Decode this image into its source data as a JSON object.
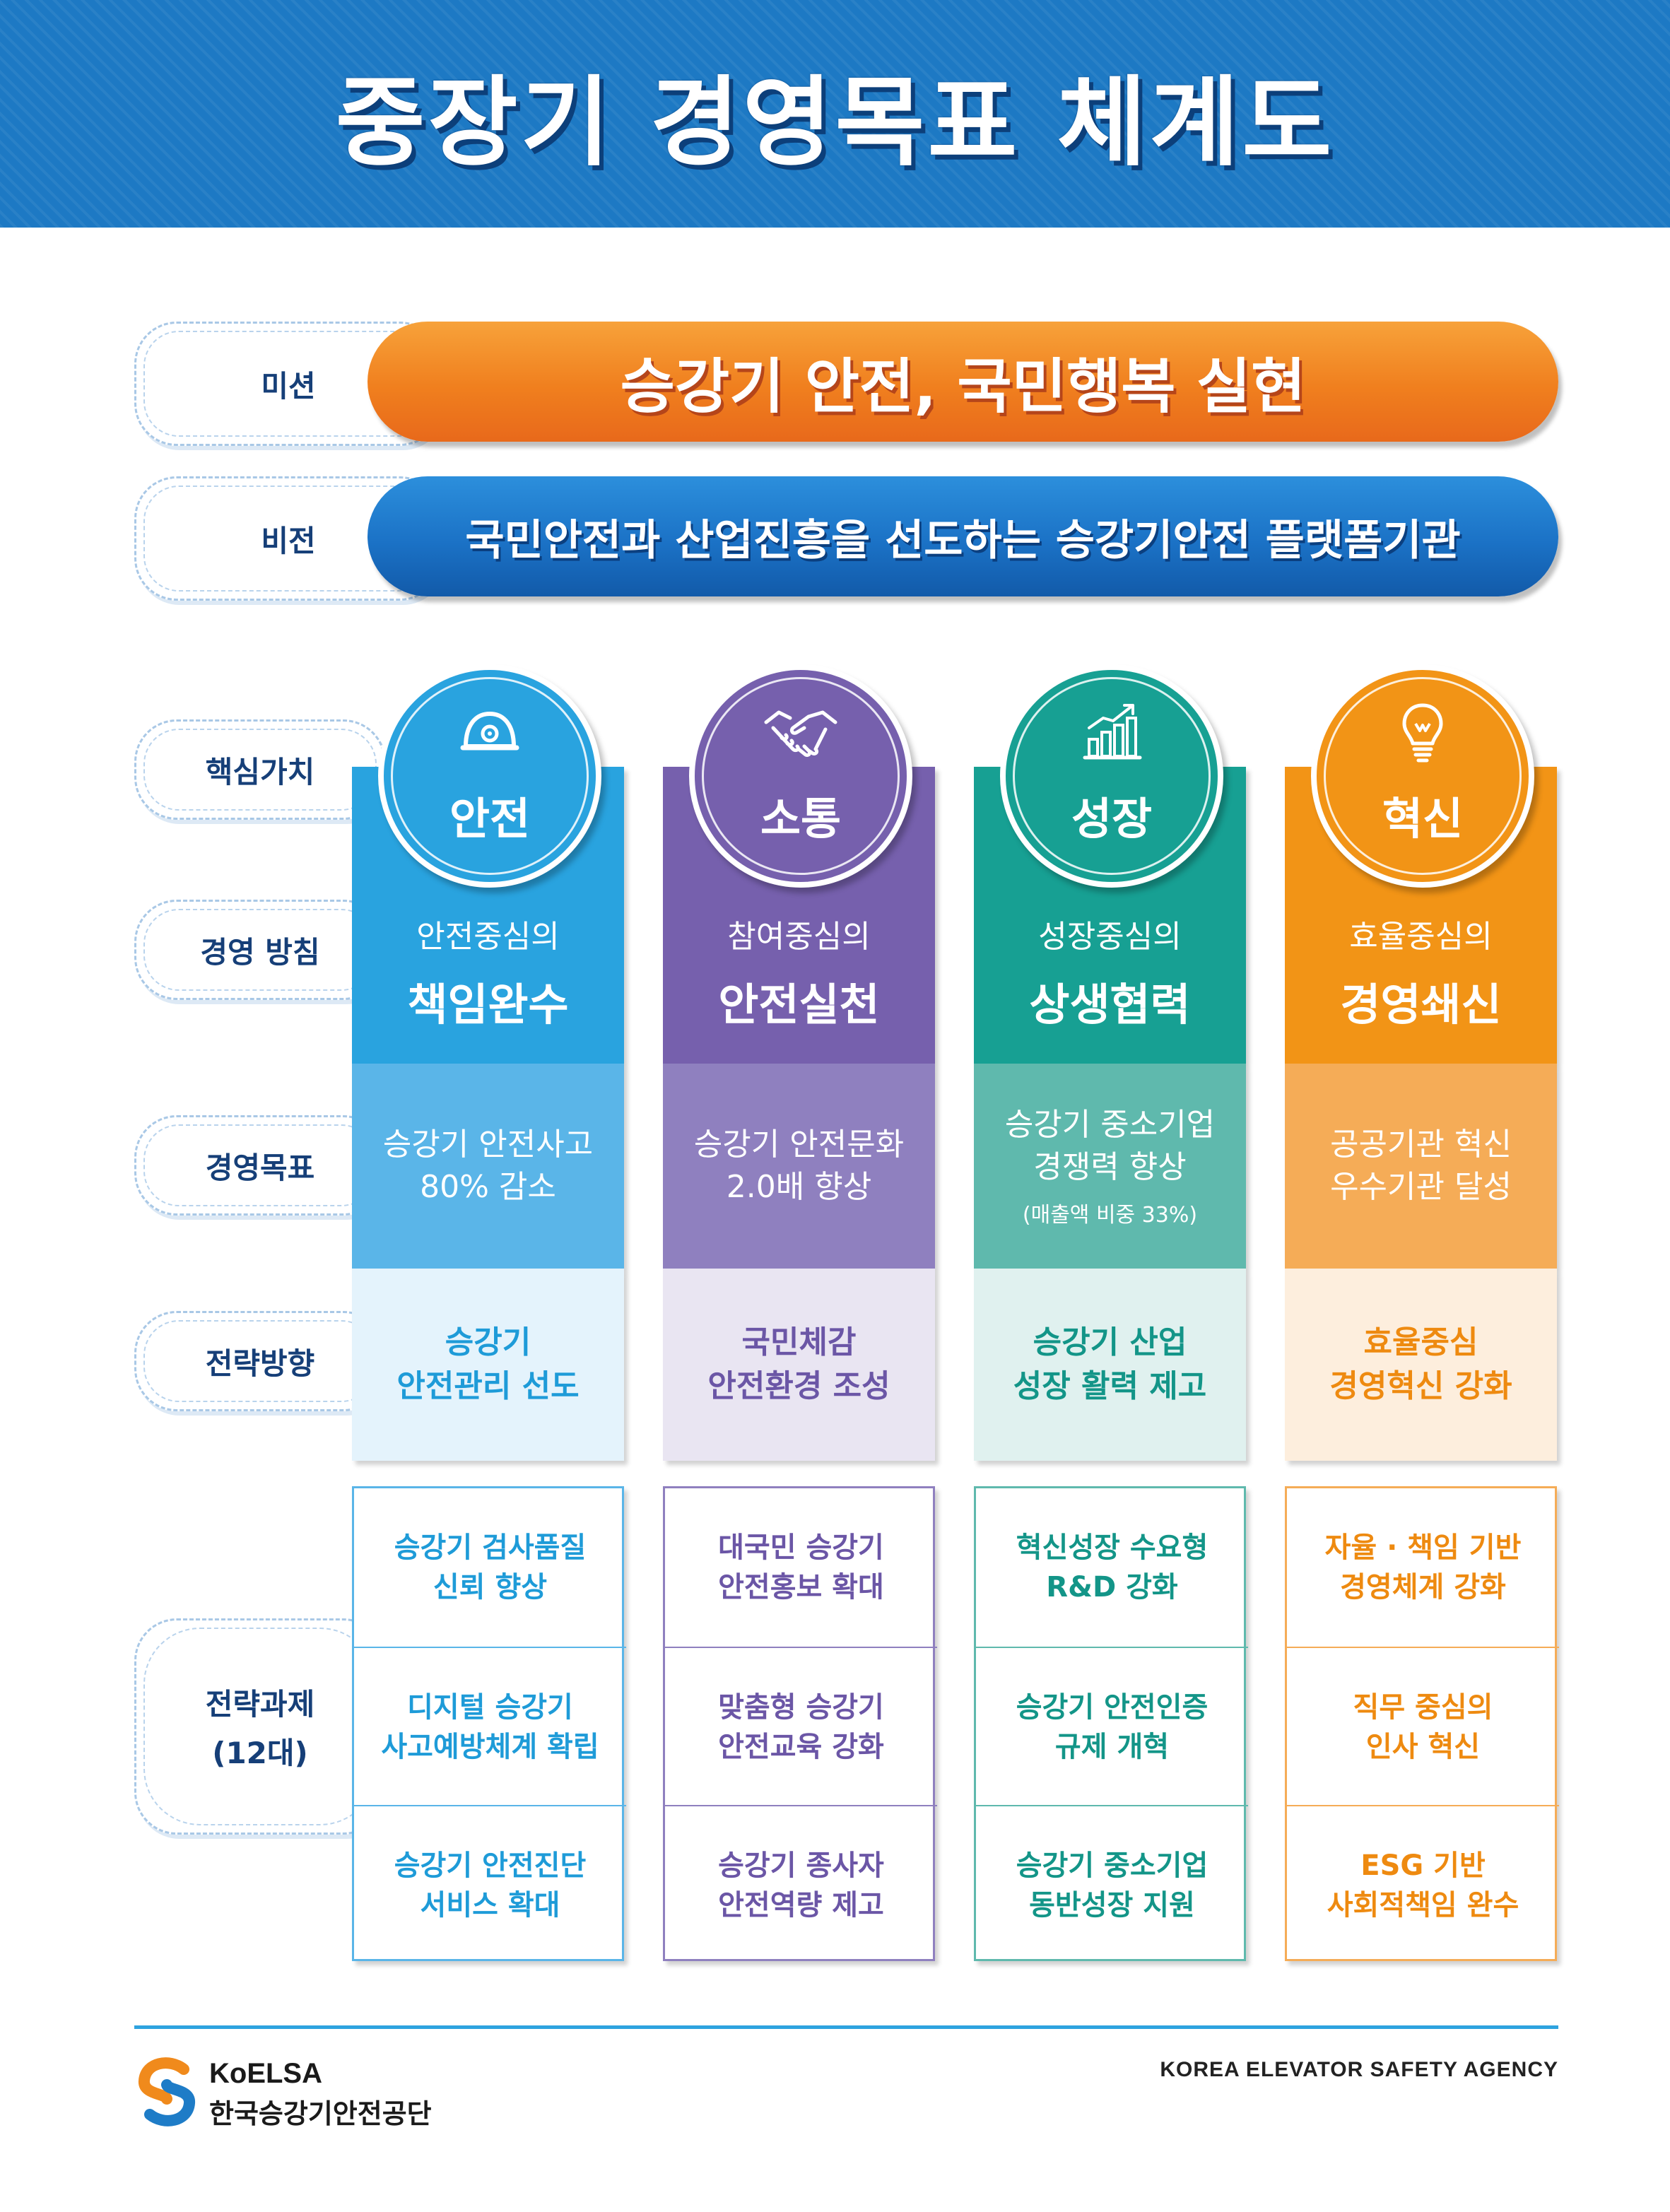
{
  "title": "중장기 경영목표 체계도",
  "mission": {
    "label": "미션",
    "text": "승강기 안전, 국민행복 실현"
  },
  "vision": {
    "label": "비전",
    "text": "국민안전과 산업진흥을 선도하는 승강기안전 플랫폼기관"
  },
  "row_labels": {
    "core_values": "핵심가치",
    "policy": "경영 방침",
    "goals": "경영목표",
    "directions": "전략방향",
    "tasks_line1": "전략과제",
    "tasks_line2": "(12대)"
  },
  "columns": [
    {
      "value": "안전",
      "icon": "helmet-icon",
      "policy_sub": "안전중심의",
      "policy_main": "책임완수",
      "goal": [
        "승강기 안전사고",
        "80% 감소"
      ],
      "goal_note": "",
      "direction": [
        "승강기",
        "안전관리 선도"
      ],
      "tasks": [
        [
          "승강기 검사품질",
          "신뢰 향상"
        ],
        [
          "디지털 승강기",
          "사고예방체계 확립"
        ],
        [
          "승강기 안전진단",
          "서비스 확대"
        ]
      ],
      "colors": {
        "main": "#29a3df",
        "goal": "#5ab5e8",
        "dir_bg": "#e4f3fc",
        "text": "#1e9bd8"
      }
    },
    {
      "value": "소통",
      "icon": "handshake-icon",
      "policy_sub": "참여중심의",
      "policy_main": "안전실천",
      "goal": [
        "승강기 안전문화",
        "2.0배 향상"
      ],
      "goal_note": "",
      "direction": [
        "국민체감",
        "안전환경 조성"
      ],
      "tasks": [
        [
          "대국민 승강기",
          "안전홍보 확대"
        ],
        [
          "맞춤형 승강기",
          "안전교육 강화"
        ],
        [
          "승강기 종사자",
          "안전역량 제고"
        ]
      ],
      "colors": {
        "main": "#7660ad",
        "goal": "#8f80bf",
        "dir_bg": "#e9e5f2",
        "text": "#6b56a6"
      }
    },
    {
      "value": "성장",
      "icon": "growth-chart-icon",
      "policy_sub": "성장중심의",
      "policy_main": "상생협력",
      "goal": [
        "승강기 중소기업",
        "경쟁력 향상"
      ],
      "goal_note": "(매출액 비중 33%)",
      "direction": [
        "승강기 산업",
        "성장 활력 제고"
      ],
      "tasks": [
        [
          "혁신성장 수요형",
          "R&D 강화"
        ],
        [
          "승강기 안전인증",
          "규제 개혁"
        ],
        [
          "승강기 중소기업",
          "동반성장 지원"
        ]
      ],
      "colors": {
        "main": "#17a093",
        "goal": "#5fb9ad",
        "dir_bg": "#e0f1ef",
        "text": "#139588"
      }
    },
    {
      "value": "혁신",
      "icon": "lightbulb-icon",
      "policy_sub": "효율중심의",
      "policy_main": "경영쇄신",
      "goal": [
        "공공기관 혁신",
        "우수기관 달성"
      ],
      "goal_note": "",
      "direction": [
        "효율중심",
        "경영혁신 강화"
      ],
      "tasks": [
        [
          "자율 · 책임 기반",
          "경영체계 강화"
        ],
        [
          "직무 중심의",
          "인사 혁신"
        ],
        [
          "ESG 기반",
          "사회적책임 완수"
        ]
      ],
      "colors": {
        "main": "#f29416",
        "goal": "#f5ac57",
        "dir_bg": "#fdeedd",
        "text": "#ee8a10"
      }
    }
  ],
  "footer": {
    "brand_name": "KoELSA",
    "brand_korean": "한국승강기안전공단",
    "agency_english": "KOREA ELEVATOR SAFETY AGENCY"
  }
}
